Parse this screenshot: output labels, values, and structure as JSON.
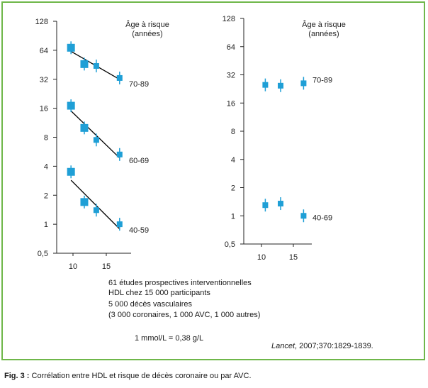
{
  "chart_data": [
    {
      "type": "scatter",
      "title": "Âge à risque\n(années)",
      "yscale": "log2",
      "ylim": [
        0.5,
        128
      ],
      "yticks": [
        "128",
        "64",
        "32",
        "16",
        "8",
        "4",
        "2",
        "1",
        "0,5"
      ],
      "xticks": [
        "10",
        "15"
      ],
      "series": [
        {
          "name": "70-89",
          "x": [
            9.7,
            11.7,
            13.5,
            17.0
          ],
          "y": [
            68,
            46,
            44,
            33
          ]
        },
        {
          "name": "60-69",
          "x": [
            9.7,
            11.7,
            13.5,
            17.0
          ],
          "y": [
            17,
            10,
            7.5,
            5.3
          ]
        },
        {
          "name": "40-59",
          "x": [
            9.7,
            11.7,
            13.5,
            17.0
          ],
          "y": [
            3.5,
            1.7,
            1.4,
            1.0
          ]
        }
      ]
    },
    {
      "type": "scatter",
      "title": "Âge à risque\n(années)",
      "yscale": "log2",
      "ylim": [
        0.5,
        128
      ],
      "yticks": [
        "128",
        "64",
        "32",
        "16",
        "8",
        "4",
        "2",
        "1",
        "0,5"
      ],
      "xticks": [
        "10",
        "15"
      ],
      "series": [
        {
          "name": "70-89",
          "x": [
            10.6,
            13.0,
            16.6
          ],
          "y": [
            25,
            24.5,
            26
          ]
        },
        {
          "name": "40-69",
          "x": [
            10.6,
            13.0,
            16.6
          ],
          "y": [
            1.3,
            1.35,
            1.0
          ]
        }
      ]
    }
  ],
  "notes": {
    "line1": "61 études prospectives interventionnelles",
    "line2": "HDL chez 15 000 participants",
    "line3": "5 000 décès vasculaires",
    "line4": "(3 000 coronaires, 1 000 AVC, 1 000 autres)",
    "conversion": "1 mmol/L = 0,38 g/L",
    "reference_journal": "Lancet",
    "reference_rest": ", 2007;370:1829-1839."
  },
  "caption": {
    "label": "Fig. 3 :",
    "text": " Corrélation entre HDL et risque de décès coronaire ou par AVC."
  },
  "colors": {
    "marker": "#1f9fd6",
    "frame": "#6fb74a",
    "axis": "#222222"
  }
}
